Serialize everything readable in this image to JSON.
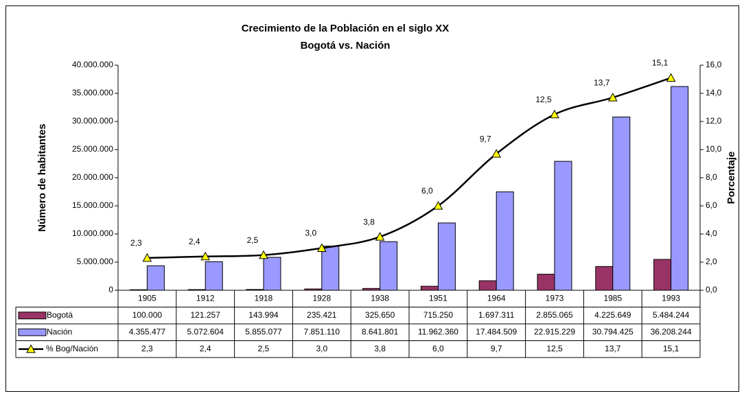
{
  "chart_data": {
    "type": "bar",
    "title": "Crecimiento de la Población en el siglo XX",
    "subtitle": "Bogotá vs. Nación",
    "y_label": "Número de habitantes",
    "y2_label": "Porcentaje",
    "categories": [
      "1905",
      "1912",
      "1918",
      "1928",
      "1938",
      "1951",
      "1964",
      "1973",
      "1985",
      "1993"
    ],
    "series": [
      {
        "name": "Bogotá",
        "type": "bar",
        "color": "#993366",
        "values": [
          100000,
          121257,
          143994,
          235421,
          325650,
          715250,
          1697311,
          2855065,
          4225649,
          5484244
        ],
        "value_labels": [
          "100.000",
          "121.257",
          "143.994",
          "235.421",
          "325.650",
          "715.250",
          "1.697.311",
          "2.855.065",
          "4.225.649",
          "5.484.244"
        ]
      },
      {
        "name": "Nación",
        "type": "bar",
        "color": "#9999ff",
        "values": [
          4355477,
          5072604,
          5855077,
          7851110,
          8641801,
          11962360,
          17484509,
          22915229,
          30794425,
          36208244
        ],
        "value_labels": [
          "4.355.477",
          "5.072.604",
          "5.855.077",
          "7.851.110",
          "8.641.801",
          "11.962.360",
          "17.484.509",
          "22.915.229",
          "30.794.425",
          "36.208.244"
        ]
      },
      {
        "name": "% Bog/Nación",
        "type": "line",
        "axis": "y2",
        "color": "#000000",
        "marker_color": "#ffff00",
        "values": [
          2.3,
          2.4,
          2.5,
          3.0,
          3.8,
          6.0,
          9.7,
          12.5,
          13.7,
          15.1
        ],
        "value_labels": [
          "2,3",
          "2,4",
          "2,5",
          "3,0",
          "3,8",
          "6,0",
          "9,7",
          "12,5",
          "13,7",
          "15,1"
        ]
      }
    ],
    "ylim": [
      0,
      40000000
    ],
    "yticks": [
      0,
      {
        "value": 5000000,
        "label": "5.000.000"
      },
      {
        "value": 10000000,
        "label": "10.000.000"
      },
      {
        "value": 15000000,
        "label": "15.000.000"
      },
      {
        "value": 20000000,
        "label": "20.000.000"
      },
      {
        "value": 25000000,
        "label": "25.000.000"
      },
      {
        "value": 30000000,
        "label": "30.000.000"
      },
      {
        "value": 35000000,
        "label": "35.000.000"
      },
      {
        "value": 40000000,
        "label": "40.000.000"
      }
    ],
    "y2lim": [
      0,
      16
    ],
    "y2ticks": [
      {
        "value": 0,
        "label": "0,0"
      },
      {
        "value": 2,
        "label": "2,0"
      },
      {
        "value": 4,
        "label": "4,0"
      },
      {
        "value": 6,
        "label": "6,0"
      },
      {
        "value": 8,
        "label": "8,0"
      },
      {
        "value": 10,
        "label": "10,0"
      },
      {
        "value": 12,
        "label": "12,0"
      },
      {
        "value": 14,
        "label": "14,0"
      },
      {
        "value": 16,
        "label": "16,0"
      }
    ],
    "grid": false,
    "data_table": true
  }
}
